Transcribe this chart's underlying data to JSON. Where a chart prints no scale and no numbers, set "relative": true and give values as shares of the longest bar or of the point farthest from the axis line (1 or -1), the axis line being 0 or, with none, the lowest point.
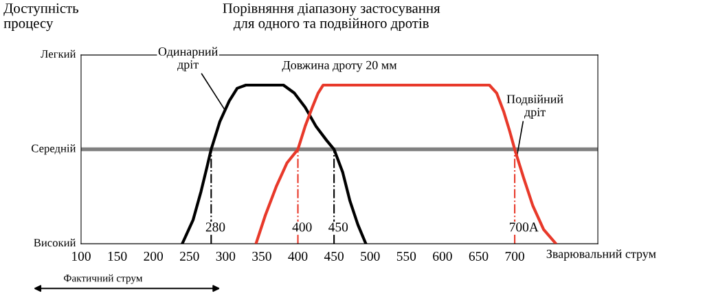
{
  "chart_data": {
    "type": "line",
    "title": "Порівняння діапазону застосування\nдля одного та подвійного дротів",
    "ylabel": "Доступність\nпроцесу",
    "xlabel": "Зварювальний струм",
    "relative": true,
    "series": [
      {
        "color": "#000000",
        "x": [
          240,
          255,
          266,
          274,
          280,
          292,
          305,
          316,
          328,
          380,
          395,
          410,
          425,
          440,
          450,
          462,
          472,
          483,
          494
        ],
        "values": [
          0,
          0.15,
          0.33,
          0.48,
          0.595,
          0.77,
          0.9,
          0.98,
          1,
          1,
          0.95,
          0.86,
          0.74,
          0.65,
          0.595,
          0.45,
          0.27,
          0.12,
          0
        ]
      },
      {
        "color": "#e8392a",
        "x": [
          342,
          355,
          370,
          385,
          400,
          410,
          420,
          428,
          435,
          665,
          675,
          685,
          693,
          700,
          712,
          725,
          740,
          757
        ],
        "values": [
          0,
          0.18,
          0.36,
          0.51,
          0.595,
          0.74,
          0.86,
          0.95,
          1,
          1,
          0.95,
          0.83,
          0.71,
          0.595,
          0.42,
          0.24,
          0.09,
          0
        ]
      }
    ],
    "xlim": [
      100,
      815
    ],
    "xticks": [
      100,
      150,
      200,
      250,
      300,
      350,
      400,
      450,
      500,
      550,
      600,
      650,
      700
    ],
    "ref_lines": [
      {
        "axis": "y",
        "value": 0.595,
        "label": "Середній",
        "color": "#808080",
        "line_style": "solid"
      },
      {
        "axis": "x",
        "value": 280,
        "label": "280",
        "color": "#000000",
        "line_style": "dashdot"
      },
      {
        "axis": "x",
        "value": 400,
        "label": "400",
        "color": "#e8392a",
        "line_style": "dashdot"
      },
      {
        "axis": "x",
        "value": 450,
        "label": "450",
        "color": "#000000",
        "line_style": "dashdot"
      },
      {
        "axis": "x",
        "value": 700,
        "label": "700A",
        "color": "#e8392a",
        "line_style": "dashdot"
      }
    ],
    "annotations": [
      "Довжина дроту 20 мм",
      {
        "text": "Одинарний\nдріт",
        "x": 298,
        "y": 0.85
      },
      {
        "text": "Подвійний\nдріт",
        "x": 703,
        "y": 0.55
      },
      "Фактичний струм",
      "Легкий",
      "Високий"
    ],
    "grid": false,
    "marker": "none",
    "line_style": "solid"
  }
}
